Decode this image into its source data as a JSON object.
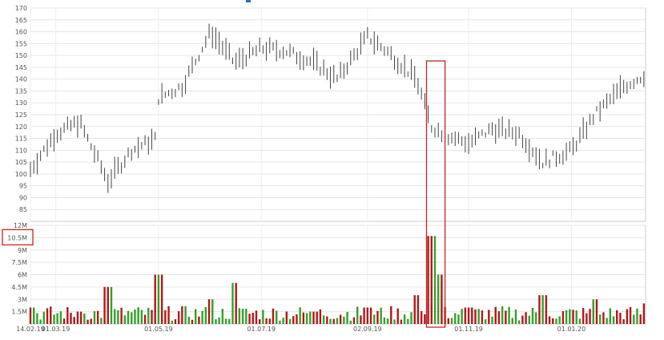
{
  "chart_data": [
    {
      "type": "ohlc",
      "title": "",
      "xlabel": "",
      "ylabel": "",
      "ylim": [
        80,
        170
      ],
      "y_ticks": [
        "85",
        "90",
        "95",
        "100",
        "105",
        "110",
        "115",
        "120",
        "125",
        "130",
        "135",
        "140",
        "145",
        "150",
        "155",
        "160",
        "165",
        "170"
      ],
      "x_ticks": [
        "14.02.19",
        "01.03.19",
        "01.05.19",
        "01.07.19",
        "02.09.19",
        "01.11.19",
        "01.01.20"
      ],
      "grid": true,
      "bar_color": "#444444",
      "highlight_color": "#cc2222",
      "highlight_range": [
        "2019-10-07",
        "2019-10-18"
      ],
      "series": [
        {
          "x": "2019-02-14",
          "y": 102
        },
        {
          "x": "2019-03-01",
          "y": 117
        },
        {
          "x": "2019-03-15",
          "y": 122
        },
        {
          "x": "2019-04-01",
          "y": 97
        },
        {
          "x": "2019-04-15",
          "y": 110
        },
        {
          "x": "2019-04-30",
          "y": 115
        },
        {
          "x": "2019-05-01",
          "y": 132
        },
        {
          "x": "2019-05-15",
          "y": 137
        },
        {
          "x": "2019-06-01",
          "y": 160
        },
        {
          "x": "2019-06-15",
          "y": 147
        },
        {
          "x": "2019-07-01",
          "y": 153
        },
        {
          "x": "2019-07-15",
          "y": 152
        },
        {
          "x": "2019-08-01",
          "y": 147
        },
        {
          "x": "2019-08-15",
          "y": 140
        },
        {
          "x": "2019-09-02",
          "y": 158
        },
        {
          "x": "2019-09-15",
          "y": 151
        },
        {
          "x": "2019-10-01",
          "y": 140
        },
        {
          "x": "2019-10-10",
          "y": 120
        },
        {
          "x": "2019-10-20",
          "y": 116
        },
        {
          "x": "2019-11-01",
          "y": 113
        },
        {
          "x": "2019-11-15",
          "y": 119
        },
        {
          "x": "2019-12-01",
          "y": 117
        },
        {
          "x": "2019-12-15",
          "y": 105
        },
        {
          "x": "2020-01-01",
          "y": 110
        },
        {
          "x": "2020-01-15",
          "y": 125
        },
        {
          "x": "2020-02-01",
          "y": 137
        },
        {
          "x": "2020-02-14",
          "y": 142
        }
      ]
    },
    {
      "type": "bar",
      "title": "",
      "xlabel": "",
      "ylabel": "",
      "ylim": [
        0,
        12000000
      ],
      "y_ticks": [
        "1.5M",
        "3M",
        "4.5M",
        "6M",
        "7.5M",
        "9M",
        "10.5M",
        "12M"
      ],
      "highlighted_tick": "10.5M",
      "colors": {
        "up": "#33a02c",
        "down": "#b01818"
      },
      "series": [
        {
          "x": "2019-02-14",
          "volume": 2000000
        },
        {
          "x": "2019-03-15",
          "volume": 1500000
        },
        {
          "x": "2019-04-01",
          "volume": 4500000
        },
        {
          "x": "2019-05-01",
          "volume": 6000000
        },
        {
          "x": "2019-06-01",
          "volume": 3000000
        },
        {
          "x": "2019-06-15",
          "volume": 5000000
        },
        {
          "x": "2019-08-01",
          "volume": 1500000
        },
        {
          "x": "2019-09-02",
          "volume": 2000000
        },
        {
          "x": "2019-10-01",
          "volume": 3500000
        },
        {
          "x": "2019-10-10",
          "volume": 10700000
        },
        {
          "x": "2019-10-14",
          "volume": 6000000
        },
        {
          "x": "2019-11-01",
          "volume": 2000000
        },
        {
          "x": "2019-12-15",
          "volume": 3500000
        },
        {
          "x": "2020-01-15",
          "volume": 3000000
        },
        {
          "x": "2020-02-14",
          "volume": 2500000
        }
      ]
    }
  ]
}
